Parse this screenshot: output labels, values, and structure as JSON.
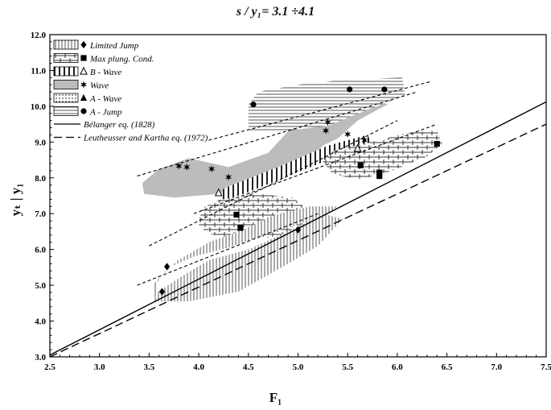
{
  "chart_data": {
    "type": "scatter",
    "title": "s / y₁= 3.1 ÷4.1",
    "xlabel": "F₁",
    "ylabel": "yₜ | y₁",
    "xlim": [
      2.5,
      7.5
    ],
    "ylim": [
      3.0,
      12.0
    ],
    "xticks": [
      "2.5",
      "3.0",
      "3.5",
      "4.0",
      "4.5",
      "5.0",
      "5.5",
      "6.0",
      "6.5",
      "7.0",
      "7.5"
    ],
    "yticks": [
      "3.0",
      "4.0",
      "5.0",
      "6.0",
      "7.0",
      "8.0",
      "9.0",
      "10.0",
      "11.0",
      "12.0"
    ],
    "grid": false,
    "legend_position": "top-left",
    "series": [
      {
        "name": "Limited Jump",
        "marker": "diamond",
        "fill": "vertical-hatch",
        "points": [
          [
            3.63,
            4.82
          ],
          [
            3.68,
            5.52
          ],
          [
            5.0,
            6.55
          ]
        ]
      },
      {
        "name": "Max plung. Cond.",
        "marker": "square",
        "fill": "cross-hatch",
        "points": [
          [
            4.38,
            6.97
          ],
          [
            4.42,
            6.6
          ],
          [
            5.63,
            8.35
          ],
          [
            5.82,
            8.05
          ],
          [
            5.82,
            8.15
          ],
          [
            6.4,
            8.95
          ]
        ]
      },
      {
        "name": "B - Wave",
        "marker": "open-triangle",
        "fill": "vertical-lines",
        "points": [
          [
            4.2,
            7.58
          ],
          [
            5.6,
            8.82
          ]
        ]
      },
      {
        "name": "Wave",
        "marker": "star",
        "fill": "gray",
        "points": [
          [
            3.8,
            8.33
          ],
          [
            3.88,
            8.3
          ],
          [
            4.13,
            8.25
          ],
          [
            4.3,
            8.02
          ],
          [
            5.28,
            9.32
          ],
          [
            5.3,
            9.55
          ],
          [
            5.5,
            9.22
          ],
          [
            5.67,
            9.05
          ]
        ]
      },
      {
        "name": "A - Wave",
        "marker": "triangle",
        "fill": "dots",
        "points": []
      },
      {
        "name": "A - Jump",
        "marker": "circle",
        "fill": "horizontal-lines",
        "points": [
          [
            4.55,
            10.05
          ],
          [
            5.52,
            10.47
          ],
          [
            5.87,
            10.47
          ]
        ]
      }
    ],
    "lines": [
      {
        "name": "Bélanger eq. (1828)",
        "style": "solid",
        "points": [
          [
            2.5,
            3.05
          ],
          [
            7.5,
            10.12
          ]
        ]
      },
      {
        "name": "Leutheusser and Kartha eq. (1972)",
        "style": "long-dash",
        "points": [
          [
            2.5,
            3.0
          ],
          [
            7.5,
            9.5
          ]
        ]
      }
    ],
    "envelopes": [
      {
        "points": [
          [
            3.38,
            5.0
          ],
          [
            5.2,
            7.0
          ]
        ]
      },
      {
        "points": [
          [
            3.5,
            6.1
          ],
          [
            6.0,
            9.6
          ]
        ]
      },
      {
        "points": [
          [
            3.95,
            7.0
          ],
          [
            6.4,
            9.5
          ]
        ]
      },
      {
        "points": [
          [
            3.38,
            8.05
          ],
          [
            6.2,
            10.4
          ]
        ]
      },
      {
        "points": [
          [
            4.1,
            9.05
          ],
          [
            6.35,
            10.7
          ]
        ]
      }
    ]
  }
}
